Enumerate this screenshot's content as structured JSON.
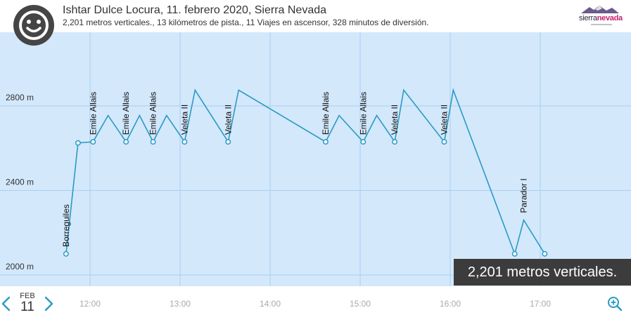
{
  "header": {
    "title": "Ishtar Dulce Locura, 11. febrero 2020, Sierra Nevada",
    "subtitle": "2,201 metros verticales., 13 kilómetros de pista., 11 Viajes en ascensor, 328 minutos de diversión.",
    "avatar_icon": "smiley-icon",
    "logo": {
      "part1": "sierra",
      "part2": "nevada",
      "accent": "#c81d6d"
    }
  },
  "summary_chip": "2,201 metros verticales.",
  "footer": {
    "month": "FEB",
    "day": "11",
    "prev_icon": "chevron-left-icon",
    "next_icon": "chevron-right-icon",
    "zoom_icon": "zoom-in-icon"
  },
  "colors": {
    "plot_bg": "#d3e8fb",
    "line": "#2a9ac4",
    "grid": "#a9d0ef",
    "chip_bg": "#3c3c3c",
    "nav": "#2a9ac4"
  },
  "chart_data": {
    "type": "line",
    "xlabel": "",
    "ylabel": "",
    "x_ticks": [
      "12:00",
      "13:00",
      "14:00",
      "15:00",
      "16:00",
      "17:00"
    ],
    "y_ticks": [
      "2000 m",
      "2400 m",
      "2800 m"
    ],
    "y_tick_values": [
      2000,
      2400,
      2800
    ],
    "series": [
      {
        "values": [
          {
            "t": "11:44",
            "elev": 2100
          },
          {
            "t": "11:52",
            "elev": 2625
          },
          {
            "t": "12:02",
            "elev": 2630
          },
          {
            "t": "12:12",
            "elev": 2755
          },
          {
            "t": "12:24",
            "elev": 2630
          },
          {
            "t": "12:33",
            "elev": 2755
          },
          {
            "t": "12:42",
            "elev": 2630
          },
          {
            "t": "12:51",
            "elev": 2755
          },
          {
            "t": "13:03",
            "elev": 2630
          },
          {
            "t": "13:10",
            "elev": 2875
          },
          {
            "t": "13:32",
            "elev": 2630
          },
          {
            "t": "13:39",
            "elev": 2875
          },
          {
            "t": "14:37",
            "elev": 2630
          },
          {
            "t": "14:46",
            "elev": 2755
          },
          {
            "t": "15:02",
            "elev": 2630
          },
          {
            "t": "15:11",
            "elev": 2755
          },
          {
            "t": "15:23",
            "elev": 2630
          },
          {
            "t": "15:29",
            "elev": 2875
          },
          {
            "t": "15:56",
            "elev": 2630
          },
          {
            "t": "16:02",
            "elev": 2875
          },
          {
            "t": "16:43",
            "elev": 2100
          },
          {
            "t": "16:49",
            "elev": 2260
          },
          {
            "t": "17:03",
            "elev": 2100
          }
        ]
      }
    ],
    "lift_labels": [
      {
        "t": "11:44",
        "elev": 2100,
        "text": "Borreguiles"
      },
      {
        "t": "12:02",
        "elev": 2630,
        "text": "Emile Allais"
      },
      {
        "t": "12:24",
        "elev": 2630,
        "text": "Emile Allais"
      },
      {
        "t": "12:42",
        "elev": 2630,
        "text": "Emile Allais"
      },
      {
        "t": "13:03",
        "elev": 2630,
        "text": "Veleta II"
      },
      {
        "t": "13:32",
        "elev": 2630,
        "text": "Veleta II"
      },
      {
        "t": "14:37",
        "elev": 2630,
        "text": "Emile Allais"
      },
      {
        "t": "15:02",
        "elev": 2630,
        "text": "Emile Allais"
      },
      {
        "t": "15:23",
        "elev": 2630,
        "text": "Veleta II"
      },
      {
        "t": "15:56",
        "elev": 2630,
        "text": "Veleta II"
      },
      {
        "t": "16:49",
        "elev": 2260,
        "text": "Parador I"
      }
    ],
    "markers_at": [
      "11:44",
      "11:52",
      "12:02",
      "12:24",
      "12:42",
      "13:03",
      "13:32",
      "14:37",
      "15:02",
      "15:23",
      "15:56",
      "16:43",
      "17:03"
    ],
    "grid": true
  }
}
